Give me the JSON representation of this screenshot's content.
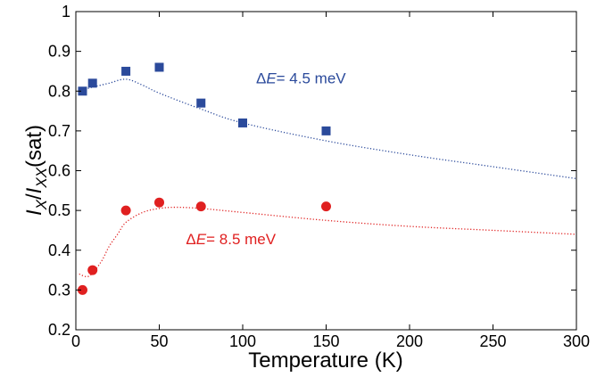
{
  "chart_data": {
    "type": "scatter",
    "xlabel": "Temperature (K)",
    "ylabel": {
      "parts": [
        "I",
        "X",
        "/",
        "I",
        "XX",
        "(sat)"
      ]
    },
    "xlim": [
      0,
      300
    ],
    "ylim": [
      0.2,
      1.0
    ],
    "xticks": [
      0,
      50,
      100,
      150,
      200,
      250,
      300
    ],
    "yticks": [
      0.2,
      0.3,
      0.4,
      0.5,
      0.6,
      0.7,
      0.8,
      0.9,
      1.0
    ],
    "ytick_labels": [
      "0.2",
      "0.3",
      "0.4",
      "0.5",
      "0.6",
      "0.7",
      "0.8",
      "0.9",
      "1"
    ],
    "grid": false,
    "series": [
      {
        "marker": "square",
        "color": "#2b4a9b",
        "x": [
          4,
          10,
          30,
          50,
          75,
          100,
          150
        ],
        "y": [
          0.8,
          0.82,
          0.85,
          0.86,
          0.77,
          0.72,
          0.7
        ],
        "fit": {
          "style": "dotted",
          "x": [
            2,
            10,
            20,
            30,
            40,
            50,
            75,
            100,
            150,
            200,
            250,
            300
          ],
          "y": [
            0.8,
            0.81,
            0.82,
            0.83,
            0.815,
            0.795,
            0.755,
            0.72,
            0.675,
            0.64,
            0.61,
            0.58
          ]
        },
        "annotation": {
          "prefix": "Δ",
          "var": "E",
          "suffix": "= 4.5 meV",
          "x": 108,
          "y": 0.82
        }
      },
      {
        "marker": "circle",
        "color": "#e02020",
        "x": [
          4,
          10,
          30,
          50,
          75,
          150
        ],
        "y": [
          0.3,
          0.35,
          0.5,
          0.52,
          0.51,
          0.51
        ],
        "fit": {
          "style": "dotted",
          "x": [
            2,
            8,
            15,
            20,
            25,
            30,
            40,
            50,
            60,
            75,
            100,
            150,
            200,
            250,
            300
          ],
          "y": [
            0.34,
            0.335,
            0.37,
            0.41,
            0.44,
            0.47,
            0.495,
            0.505,
            0.508,
            0.505,
            0.495,
            0.475,
            0.46,
            0.45,
            0.44
          ]
        },
        "annotation": {
          "prefix": "Δ",
          "var": "E",
          "suffix": "= 8.5 meV",
          "x": 66,
          "y": 0.415
        }
      }
    ]
  }
}
